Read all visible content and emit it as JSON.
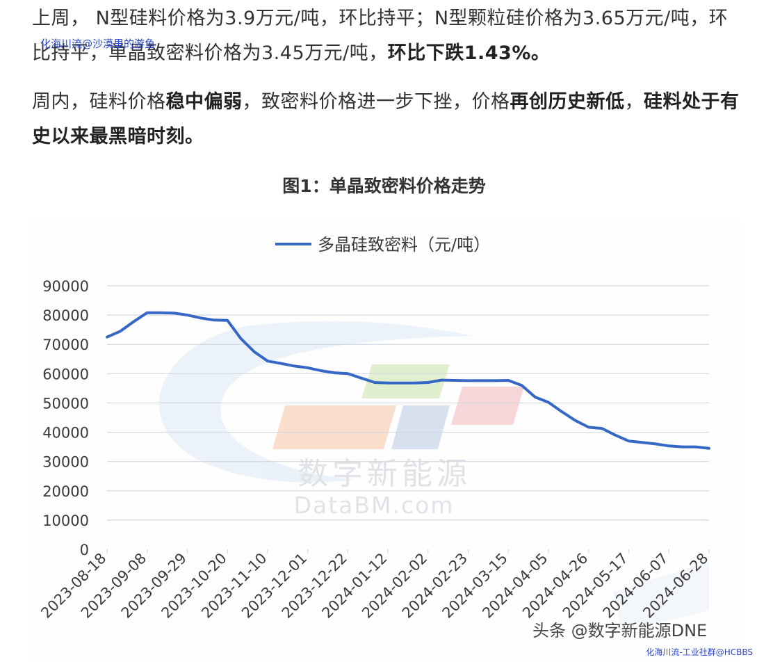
{
  "article": {
    "paragraph1": {
      "text_a": "上周，  N型硅料价格为3.9万元/吨，环比持平；N型颗粒硅价格为3.65万元/吨，环比持平，单晶致密料价格为3.45万元/吨，",
      "bold_a": "环比下跌1.43%。"
    },
    "paragraph2": {
      "t1": "周内，硅料价格",
      "b1": "稳中偏弱",
      "t2": "，致密料价格进一步下挫，价格",
      "b2": "再创历史新低",
      "t3": "，",
      "b3": "硅料处于有史以来最黑暗时刻。"
    },
    "figure_title": "图1：单晶致密料价格走势"
  },
  "watermarks": {
    "overlay": "化海川流@沙漠里的游鱼",
    "corner": "化海川流-工业社群@HCBBS",
    "chart_logo_cn": "数字新能源",
    "chart_logo_en": "DataBM.com",
    "chart_source": "头条 @数字新能源DNE"
  },
  "colors": {
    "line": "#3568c4",
    "grid": "#d3d7e2",
    "axis_text": "#3b3b3b"
  },
  "chart_data": {
    "type": "line",
    "title": "",
    "legend_position": "top",
    "grid": true,
    "ylim": [
      0,
      90000
    ],
    "yticks": [
      "0",
      "10000",
      "20000",
      "30000",
      "40000",
      "50000",
      "60000",
      "70000",
      "80000",
      "90000"
    ],
    "xticks": [
      "2023-08-18",
      "2023-09-08",
      "2023-09-29",
      "2023-10-20",
      "2023-11-10",
      "2023-12-01",
      "2023-12-22",
      "2024-01-12",
      "2024-02-02",
      "2024-02-23",
      "2024-03-15",
      "2024-04-05",
      "2024-04-26",
      "2024-05-17",
      "2024-06-07",
      "2024-06-28"
    ],
    "series": [
      {
        "name": "多晶硅致密料（元/吨）",
        "x": [
          "2023-08-18",
          "2023-08-25",
          "2023-09-01",
          "2023-09-08",
          "2023-09-15",
          "2023-09-22",
          "2023-09-29",
          "2023-10-06",
          "2023-10-13",
          "2023-10-20",
          "2023-10-27",
          "2023-11-03",
          "2023-11-10",
          "2023-11-17",
          "2023-11-24",
          "2023-12-01",
          "2023-12-08",
          "2023-12-15",
          "2023-12-22",
          "2023-12-29",
          "2024-01-05",
          "2024-01-12",
          "2024-01-19",
          "2024-01-26",
          "2024-02-02",
          "2024-02-09",
          "2024-02-16",
          "2024-02-23",
          "2024-03-01",
          "2024-03-08",
          "2024-03-15",
          "2024-03-22",
          "2024-03-29",
          "2024-04-05",
          "2024-04-12",
          "2024-04-19",
          "2024-04-26",
          "2024-05-03",
          "2024-05-10",
          "2024-05-17",
          "2024-05-24",
          "2024-05-31",
          "2024-06-07",
          "2024-06-14",
          "2024-06-21",
          "2024-06-28"
        ],
        "values": [
          72500,
          74500,
          77800,
          80800,
          80800,
          80700,
          80000,
          79000,
          78300,
          78200,
          72000,
          67500,
          64300,
          63500,
          62600,
          62000,
          61000,
          60300,
          60000,
          58500,
          57000,
          56800,
          56800,
          56800,
          57000,
          57800,
          57700,
          57600,
          57600,
          57600,
          57700,
          56000,
          52000,
          50200,
          47000,
          44000,
          41700,
          41300,
          39000,
          37000,
          36500,
          36000,
          35300,
          35000,
          35000,
          34500
        ]
      }
    ]
  }
}
